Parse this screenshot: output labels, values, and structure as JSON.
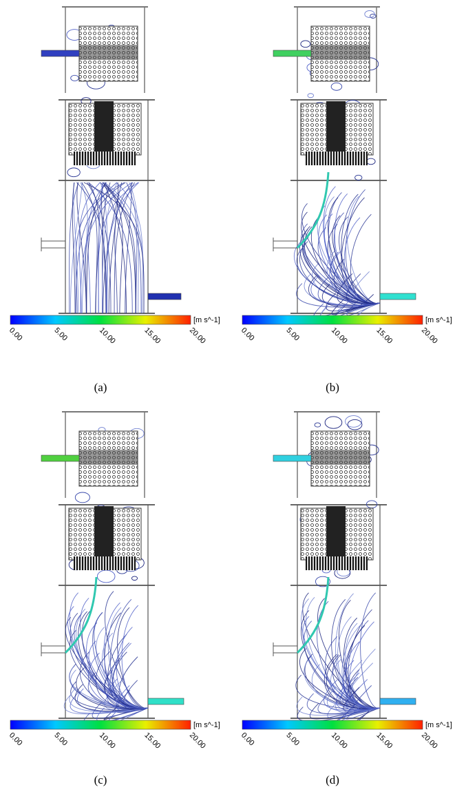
{
  "panels": [
    {
      "label": "(a)",
      "colorbar": {
        "unit": "[m s^-1]",
        "ticks": [
          "0.00",
          "5.00",
          "10.00",
          "15.00",
          "20.00"
        ]
      }
    },
    {
      "label": "(b)",
      "colorbar": {
        "unit": "[m s^-1]",
        "ticks": [
          "0.00",
          "5.00",
          "10.00",
          "15.00",
          "20.00"
        ]
      }
    },
    {
      "label": "(c)",
      "colorbar": {
        "unit": "[m s^-1]",
        "ticks": [
          "0.00",
          "5.00",
          "10.00",
          "15.00",
          "20.00"
        ]
      }
    },
    {
      "label": "(d)",
      "colorbar": {
        "unit": "[m s^-1]",
        "ticks": [
          "0.00",
          "5.00",
          "10.00",
          "15.00",
          "20.00"
        ]
      }
    }
  ]
}
